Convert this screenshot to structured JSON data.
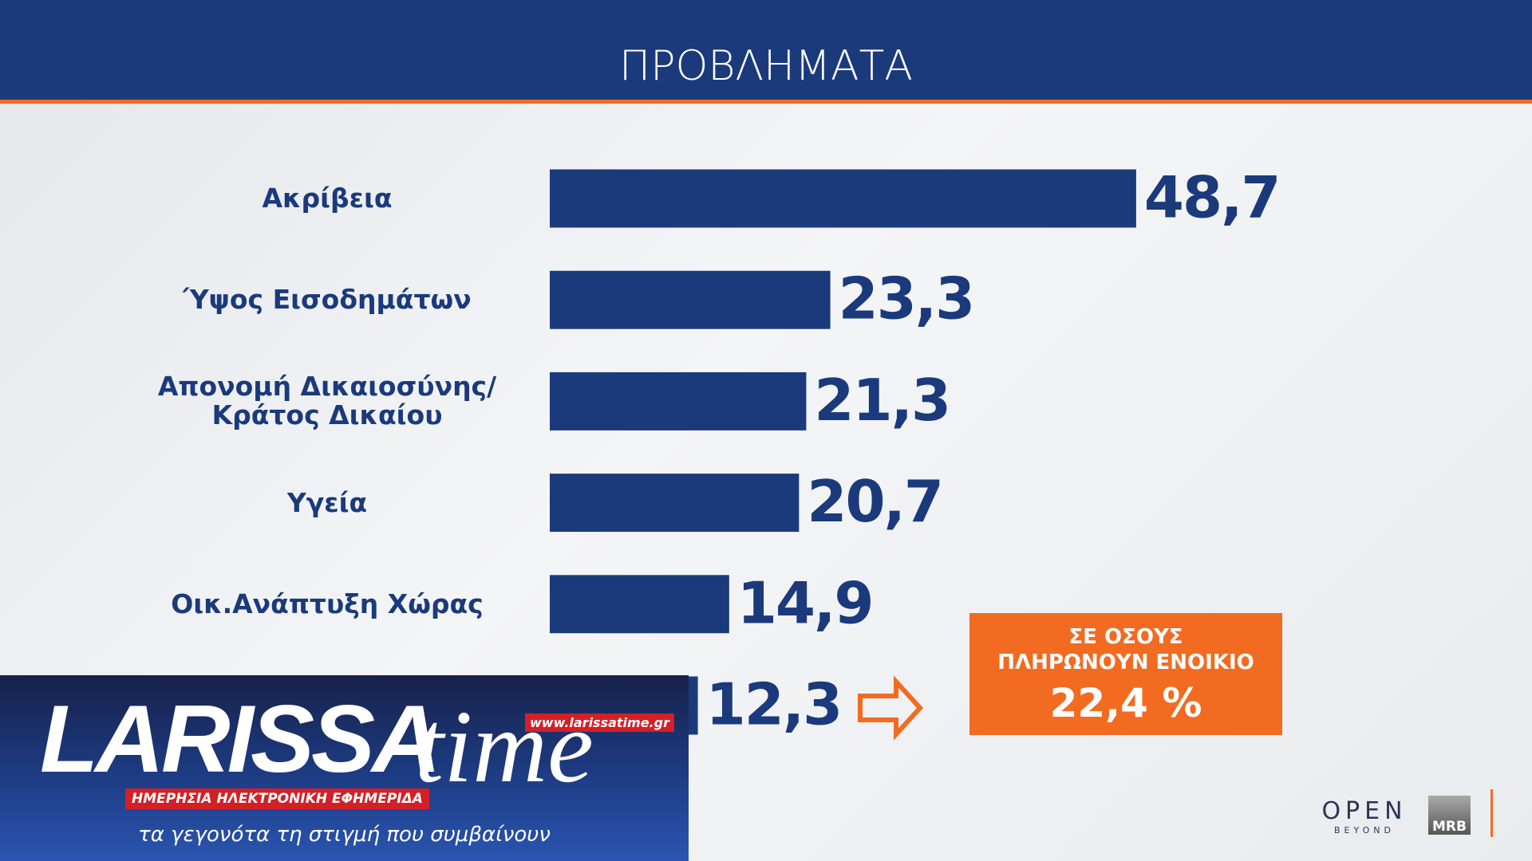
{
  "chart_data": {
    "type": "bar",
    "title": "ΠΡΟΒΛΗΜΑΤΑ",
    "categories": [
      "Ακρίβεια",
      "Ύψος Εισοδημάτων",
      "Απονομή Δικαιοσύνης/\nΚράτος Δικαίου",
      "Υγεία",
      "Οικ.Ανάπτυξη Χώρας",
      null
    ],
    "values": [
      48.7,
      23.3,
      21.3,
      20.7,
      14.9,
      12.3
    ],
    "value_labels": [
      "48,7",
      "23,3",
      "21,3",
      "20,7",
      "14,9",
      "12,3"
    ],
    "color": "#1b3a7c",
    "annotation": {
      "text": "ΣΕ ΟΣΟΥΣ\nΠΛΗΡΩΝΟΥΝ ΕΝΟΙΚΙΟ",
      "value": "22,4 %"
    }
  },
  "logo": {
    "name": "LARISSA",
    "name2": "time",
    "url": "www.larissatime.gr",
    "subtitle": "ΗΜΕΡΗΣΙΑ ΗΛΕΚΤΡΟΝΙΚΗ ΕΦΗΜΕΡΙΔΑ",
    "slogan": "τα γεγονότα τη στιγμή που συμβαίνουν"
  },
  "branding": {
    "open": "OPEN",
    "beyond": "BEYOND",
    "mrb": "MRB"
  }
}
